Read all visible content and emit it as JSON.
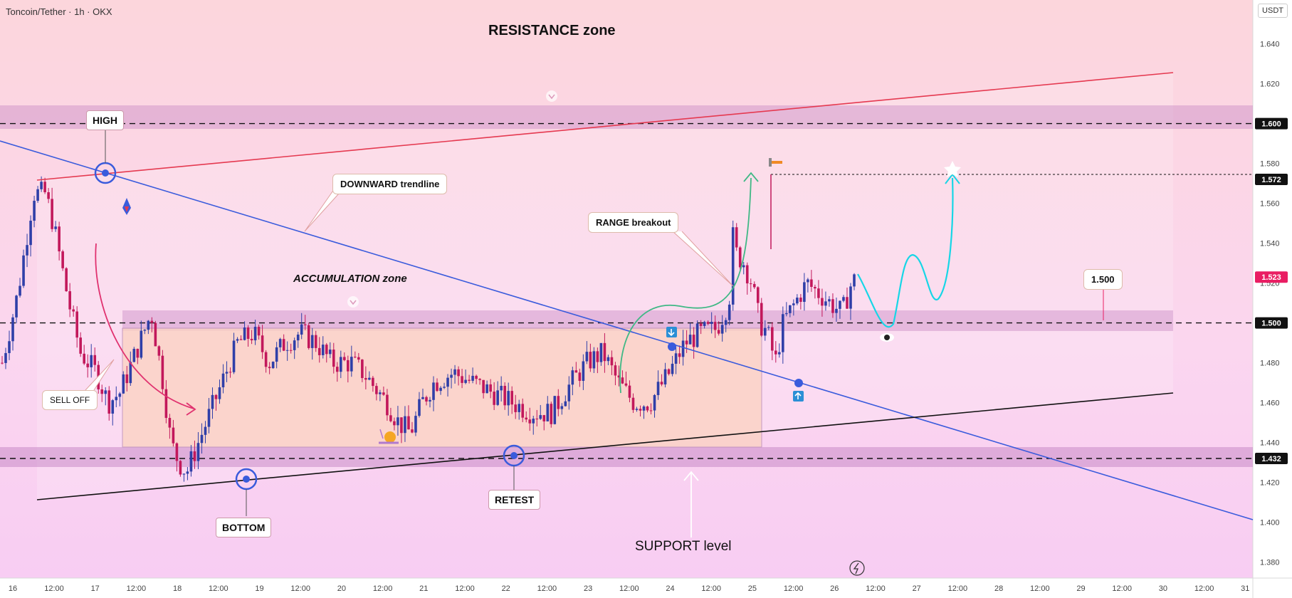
{
  "header": {
    "title": "Toncoin/Tether · 1h · OKX",
    "currency": "USDT"
  },
  "chart_data": {
    "type": "candlestick",
    "symbol": "TONUSDT",
    "timeframe": "1h",
    "ylim": [
      1.372,
      1.662
    ],
    "y_ticks": [
      1.38,
      1.4,
      1.42,
      1.44,
      1.46,
      1.48,
      1.5,
      1.52,
      1.54,
      1.56,
      1.58,
      1.6,
      1.62,
      1.64
    ],
    "x_ticks": [
      "12:00",
      "17",
      "12:00",
      "18",
      "12:00",
      "19",
      "12:00",
      "20",
      "12:00",
      "21",
      "12:00",
      "22",
      "12:00",
      "23",
      "12:00",
      "24",
      "12:00",
      "25",
      "12:00",
      "26",
      "12:00",
      "27",
      "12:00",
      "28",
      "12:00",
      "29",
      "12:00",
      "30",
      "12:00",
      "31"
    ],
    "x_first_tick_label": "16",
    "price_tags": [
      {
        "label": "1.600",
        "value": 1.6,
        "color": "#111111"
      },
      {
        "label": "1.572",
        "value": 1.572,
        "color": "#111111"
      },
      {
        "label": "1.523",
        "value": 1.523,
        "color": "#e91e63"
      },
      {
        "label": "1.500",
        "value": 1.5,
        "color": "#111111"
      },
      {
        "label": "1.432",
        "value": 1.432,
        "color": "#111111"
      }
    ],
    "horizontal_levels": [
      1.6,
      1.5,
      1.432
    ],
    "current_price": 1.523
  },
  "annotations": {
    "resistance": "RESISTANCE zone",
    "high": "HIGH",
    "downward": "DOWNWARD trendline",
    "accumulation": "ACCUMULATION zone",
    "sell_off": "SELL OFF",
    "bottom": "BOTTOM",
    "retest": "RETEST",
    "support": "SUPPORT level",
    "range_breakout": "RANGE breakout",
    "target_label": "1.500"
  },
  "colors": {
    "bull": "#2f3fa8",
    "bear": "#c2185b",
    "red_line": "#e53950",
    "blue_line": "#3a5bdc",
    "cyan": "#16d6e6",
    "green": "#3fb885"
  }
}
